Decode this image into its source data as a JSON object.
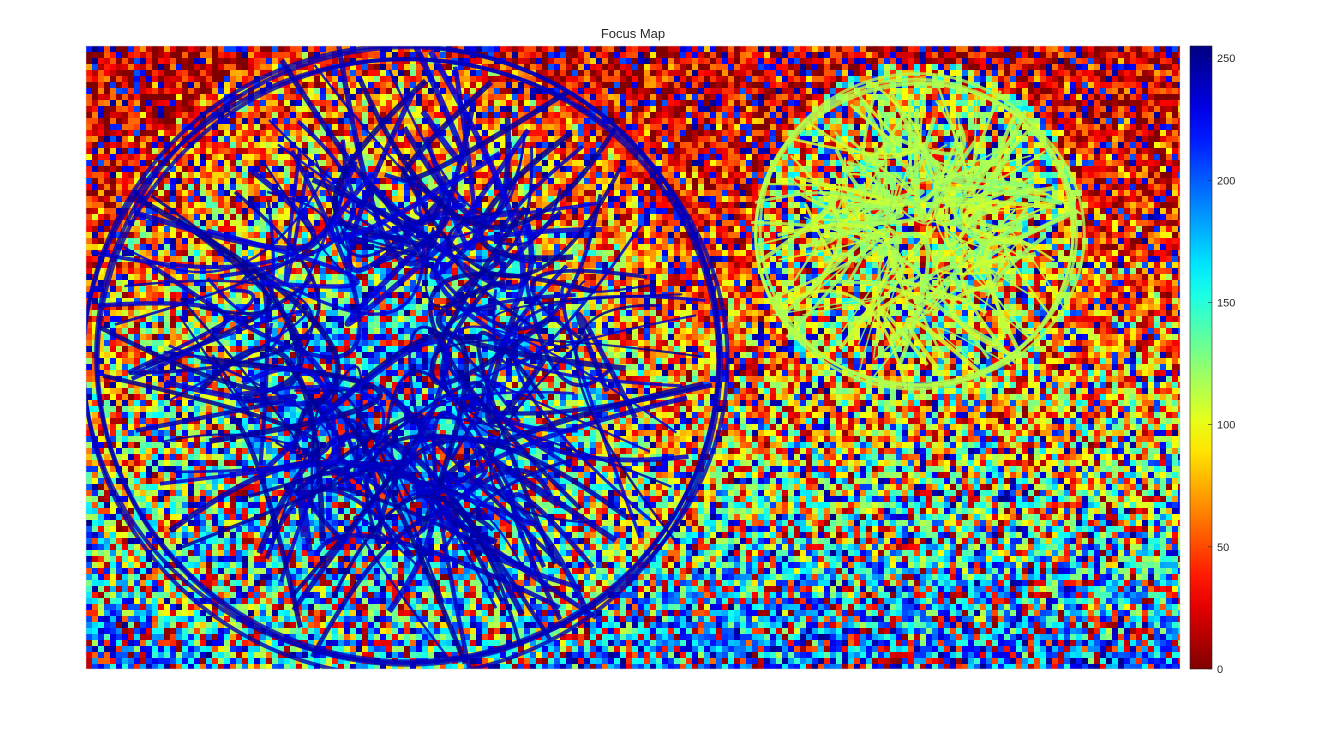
{
  "chart_data": {
    "type": "heatmap",
    "title": "Focus Map",
    "xlabel": "",
    "ylabel": "",
    "grid": false,
    "colormap": "jet (reversed)",
    "colorbar": {
      "placement": "right",
      "clim": [
        0,
        255
      ],
      "ticks": [
        0,
        50,
        100,
        150,
        200,
        250
      ],
      "tick_labels": [
        "0",
        "50",
        "100",
        "150",
        "200",
        "250"
      ],
      "color_low": "#800000",
      "color_high": "#00008f"
    },
    "description_values": {
      "left_sphere_edges": 240,
      "right_sphere_edges": 115,
      "top_background": 20,
      "bottom_floor": 190
    }
  }
}
